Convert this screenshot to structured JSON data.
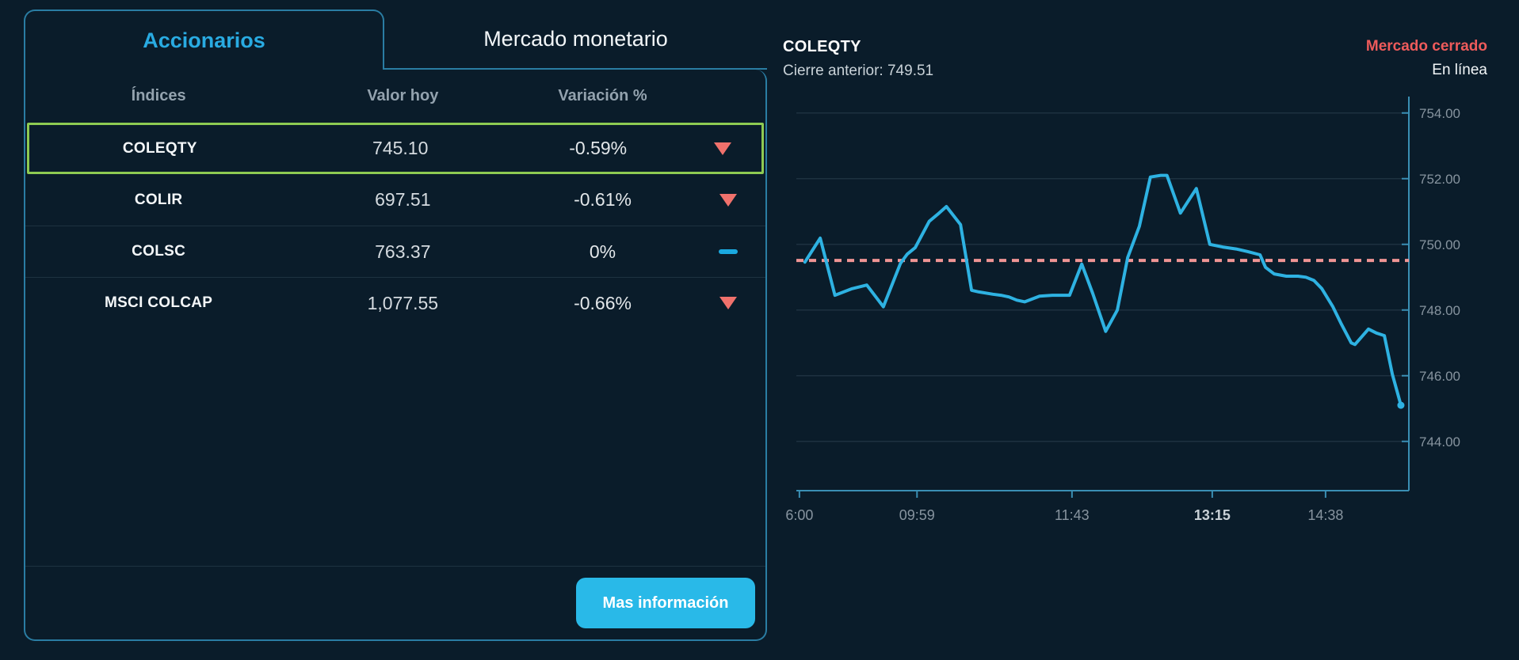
{
  "theme": {
    "background": "#0a1c2a",
    "panel_border": "#2a7da3",
    "accent_cyan": "#29abe2",
    "button_bg": "#29b9e8",
    "highlight_green": "#8ecb52",
    "negative_red": "#f0716c",
    "flat_cyan": "#1aa9e0",
    "market_closed_red": "#ee5b5b",
    "grid": "#1d3140",
    "axis": "#3a8fb4",
    "axis_label": "#87949f",
    "axis_label_bold": "#c9d1d7",
    "line": "#2eb2e2",
    "dashed_close_line": "#f09494"
  },
  "left_panel": {
    "tabs": [
      {
        "label": "Accionarios",
        "active": true
      },
      {
        "label": "Mercado monetario",
        "active": false
      }
    ],
    "table": {
      "headers": [
        "Índices",
        "Valor hoy",
        "Variación %"
      ],
      "rows": [
        {
          "index": "COLEQTY",
          "value": "745.10",
          "variation": "-0.59%",
          "direction": "down",
          "highlighted": true
        },
        {
          "index": "COLIR",
          "value": "697.51",
          "variation": "-0.61%",
          "direction": "down",
          "highlighted": false
        },
        {
          "index": "COLSC",
          "value": "763.37",
          "variation": "0%",
          "direction": "flat",
          "highlighted": false
        },
        {
          "index": "MSCI COLCAP",
          "value": "1,077.55",
          "variation": "-0.66%",
          "direction": "down",
          "highlighted": false
        }
      ]
    },
    "button_label": "Mas información"
  },
  "chart_header": {
    "title": "COLEQTY",
    "previous_close_text": "Cierre anterior: 749.51",
    "market_status": "Mercado cerrado",
    "connection_status": "En línea"
  },
  "chart_data": {
    "type": "line",
    "title": "COLEQTY",
    "ylabel": "",
    "xlabel": "",
    "ylim": [
      742.5,
      754.5
    ],
    "grid": true,
    "previous_close": 749.51,
    "yticks": [
      754,
      752,
      750,
      748,
      746,
      744
    ],
    "ytick_labels": [
      "754.00",
      "752.00",
      "750.00",
      "748.00",
      "746.00",
      "744.00"
    ],
    "xticks": [
      {
        "label": "6:00",
        "f": 0.005,
        "bold": false
      },
      {
        "label": "09:59",
        "f": 0.197,
        "bold": false
      },
      {
        "label": "11:43",
        "f": 0.45,
        "bold": false
      },
      {
        "label": "13:15",
        "f": 0.679,
        "bold": true
      },
      {
        "label": "14:38",
        "f": 0.864,
        "bold": false
      }
    ],
    "series": [
      {
        "name": "COLEQTY",
        "points": [
          [
            0.014,
            749.46
          ],
          [
            0.039,
            750.19
          ],
          [
            0.063,
            748.45
          ],
          [
            0.091,
            748.65
          ],
          [
            0.115,
            748.76
          ],
          [
            0.142,
            748.1
          ],
          [
            0.17,
            749.42
          ],
          [
            0.181,
            749.7
          ],
          [
            0.194,
            749.9
          ],
          [
            0.217,
            750.7
          ],
          [
            0.233,
            750.95
          ],
          [
            0.245,
            751.15
          ],
          [
            0.268,
            750.6
          ],
          [
            0.286,
            748.6
          ],
          [
            0.298,
            748.55
          ],
          [
            0.321,
            748.48
          ],
          [
            0.334,
            748.45
          ],
          [
            0.347,
            748.4
          ],
          [
            0.36,
            748.3
          ],
          [
            0.373,
            748.25
          ],
          [
            0.397,
            748.42
          ],
          [
            0.418,
            748.45
          ],
          [
            0.446,
            748.45
          ],
          [
            0.466,
            749.4
          ],
          [
            0.484,
            748.5
          ],
          [
            0.505,
            747.35
          ],
          [
            0.524,
            748.0
          ],
          [
            0.541,
            749.6
          ],
          [
            0.56,
            750.55
          ],
          [
            0.578,
            752.05
          ],
          [
            0.595,
            752.1
          ],
          [
            0.605,
            752.1
          ],
          [
            0.627,
            750.95
          ],
          [
            0.653,
            751.7
          ],
          [
            0.675,
            750.0
          ],
          [
            0.696,
            749.92
          ],
          [
            0.718,
            749.86
          ],
          [
            0.737,
            749.78
          ],
          [
            0.757,
            749.68
          ],
          [
            0.766,
            749.3
          ],
          [
            0.78,
            749.1
          ],
          [
            0.8,
            749.03
          ],
          [
            0.819,
            749.03
          ],
          [
            0.832,
            749.0
          ],
          [
            0.845,
            748.9
          ],
          [
            0.858,
            748.65
          ],
          [
            0.876,
            748.1
          ],
          [
            0.889,
            747.6
          ],
          [
            0.906,
            747.0
          ],
          [
            0.912,
            746.95
          ],
          [
            0.934,
            747.42
          ],
          [
            0.947,
            747.3
          ],
          [
            0.96,
            747.22
          ],
          [
            0.973,
            746.05
          ],
          [
            0.987,
            745.1
          ]
        ]
      }
    ]
  }
}
